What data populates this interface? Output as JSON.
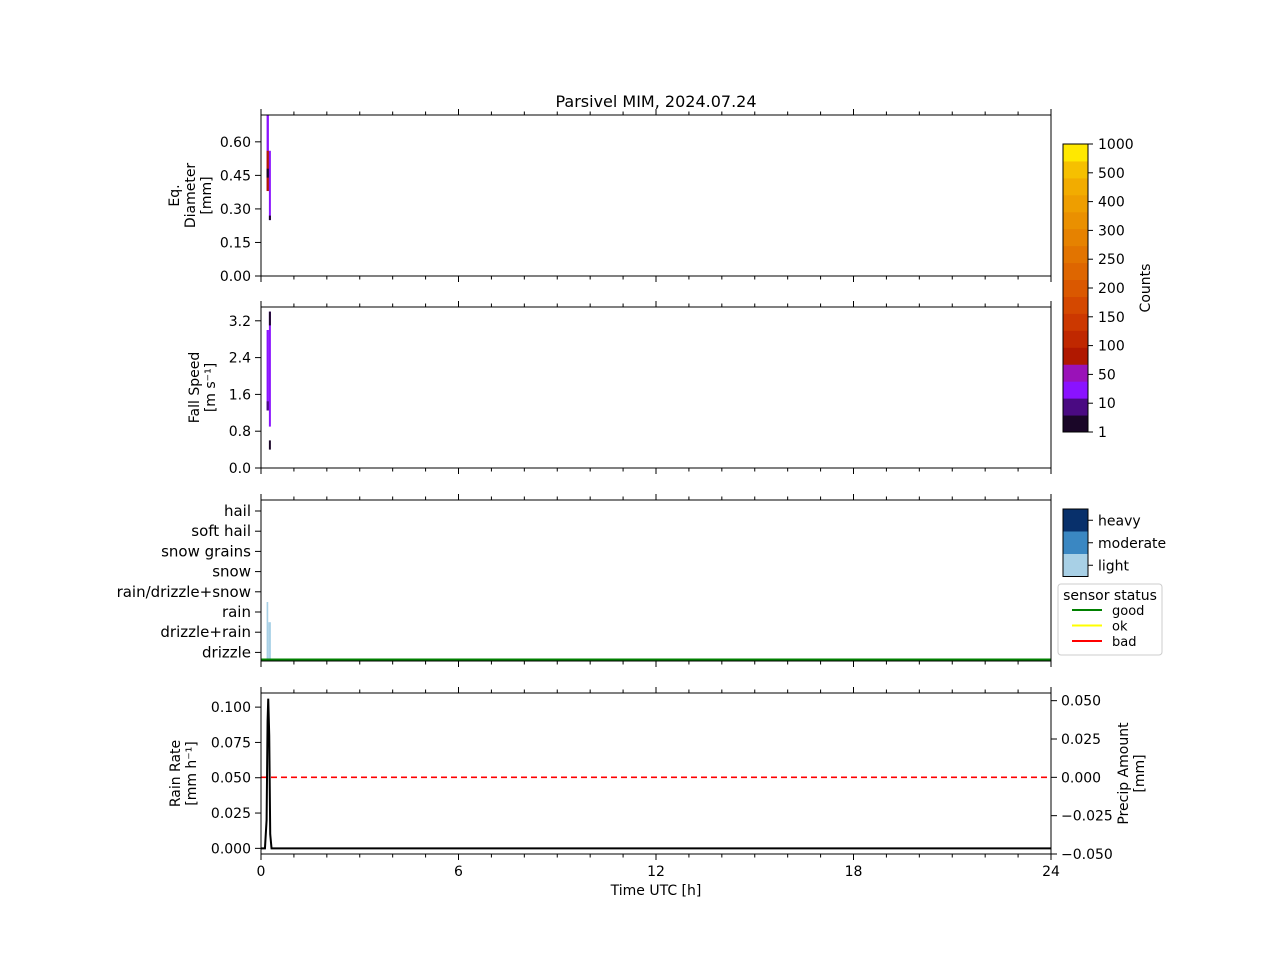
{
  "title": "Parsivel MIM, 2024.07.24",
  "x_axis": {
    "label": "Time UTC [h]",
    "range": [
      0,
      24
    ],
    "ticks": [
      0,
      6,
      12,
      18,
      24
    ],
    "tick_labels": [
      "0",
      "6",
      "12",
      "18",
      "24"
    ]
  },
  "colorbar": {
    "label": "Counts",
    "tick_labels": [
      "1",
      "10",
      "50",
      "100",
      "150",
      "200",
      "250",
      "300",
      "400",
      "500",
      "1000"
    ],
    "colors": [
      "#1a0628",
      "#4a0a82",
      "#8a12ff",
      "#9a12b8",
      "#b01800",
      "#c02800",
      "#cc3800",
      "#d44800",
      "#da5800",
      "#de6600",
      "#e27400",
      "#e68200",
      "#ea9000",
      "#ee9e00",
      "#f2ac00",
      "#f6c000",
      "#ffe800"
    ]
  },
  "intensity_legend": {
    "entries": [
      "heavy",
      "moderate",
      "light"
    ],
    "colors": [
      "#08306b",
      "#3a87c2",
      "#a8d0e6"
    ]
  },
  "sensor_legend": {
    "title": "sensor status",
    "entries": [
      {
        "label": "good",
        "color": "#008000"
      },
      {
        "label": "ok",
        "color": "#ffff00"
      },
      {
        "label": "bad",
        "color": "#ff0000"
      }
    ]
  },
  "chart_data": [
    {
      "type": "heatmap",
      "ylabel": "Eq. Diameter [mm]",
      "ylabel_lines": [
        "Eq.",
        "Diameter",
        "[mm]"
      ],
      "ylim": [
        0,
        0.72
      ],
      "yticks": [
        0,
        0.15,
        0.3,
        0.45,
        0.6
      ],
      "ytick_labels": [
        "0.00",
        "0.15",
        "0.30",
        "0.45",
        "0.60"
      ],
      "cells": [
        {
          "t0": 0.17,
          "t1": 0.24,
          "y0": 0.38,
          "y1": 0.72,
          "color": "#8a12ff"
        },
        {
          "t0": 0.17,
          "t1": 0.24,
          "y0": 0.38,
          "y1": 0.56,
          "color": "#b01800"
        },
        {
          "t0": 0.17,
          "t1": 0.24,
          "y0": 0.44,
          "y1": 0.48,
          "color": "#1a0628"
        },
        {
          "t0": 0.24,
          "t1": 0.3,
          "y0": 0.25,
          "y1": 0.56,
          "color": "#8a12ff"
        },
        {
          "t0": 0.24,
          "t1": 0.3,
          "y0": 0.25,
          "y1": 0.27,
          "color": "#1a0628"
        }
      ]
    },
    {
      "type": "heatmap",
      "ylabel": "Fall Speed [m s⁻¹]",
      "ylabel_lines": [
        "Fall Speed",
        "[m s⁻¹]"
      ],
      "ylim": [
        0,
        3.5
      ],
      "yticks": [
        0,
        0.8,
        1.6,
        2.4,
        3.2
      ],
      "ytick_labels": [
        "0.0",
        "0.8",
        "1.6",
        "2.4",
        "3.2"
      ],
      "cells": [
        {
          "t0": 0.17,
          "t1": 0.24,
          "y0": 1.25,
          "y1": 3.0,
          "color": "#8a12ff"
        },
        {
          "t0": 0.17,
          "t1": 0.24,
          "y0": 1.25,
          "y1": 1.45,
          "color": "#4a0a82"
        },
        {
          "t0": 0.24,
          "t1": 0.3,
          "y0": 0.9,
          "y1": 3.4,
          "color": "#8a12ff"
        },
        {
          "t0": 0.24,
          "t1": 0.3,
          "y0": 3.1,
          "y1": 3.4,
          "color": "#1a0628"
        },
        {
          "t0": 0.24,
          "t1": 0.3,
          "y0": 0.4,
          "y1": 0.6,
          "color": "#1a0628"
        }
      ]
    },
    {
      "type": "bar",
      "ylabel": "",
      "categories": [
        "hail",
        "soft hail",
        "snow grains",
        "snow",
        "rain/drizzle+snow",
        "rain",
        "drizzle+rain",
        "drizzle"
      ],
      "bars": [
        {
          "t0": 0.17,
          "t1": 0.22,
          "category": "rain",
          "intensity": "light"
        },
        {
          "t0": 0.22,
          "t1": 0.3,
          "category": "drizzle+rain",
          "intensity": "light"
        }
      ],
      "sensor_status": [
        {
          "t0": 0,
          "t1": 24,
          "status": "good"
        }
      ]
    },
    {
      "type": "line",
      "ylabel": "Rain Rate [mm h⁻¹]",
      "ylabel_lines": [
        "Rain Rate",
        "[mm h⁻¹]"
      ],
      "ylim": [
        -0.004,
        0.11
      ],
      "yticks": [
        0,
        0.025,
        0.05,
        0.075,
        0.1
      ],
      "ytick_labels": [
        "0.000",
        "0.025",
        "0.050",
        "0.075",
        "0.100"
      ],
      "series": [
        {
          "x": [
            0,
            0.12,
            0.17,
            0.2,
            0.22,
            0.25,
            0.28,
            0.32,
            24
          ],
          "values": [
            0,
            0,
            0.02,
            0.09,
            0.106,
            0.08,
            0.01,
            0,
            0
          ],
          "color": "#000000"
        }
      ],
      "y2label": "Precip Amount [mm]",
      "y2label_lines": [
        "Precip Amount",
        "[mm]"
      ],
      "y2lim": [
        -0.05,
        0.055
      ],
      "y2ticks": [
        -0.05,
        -0.025,
        0,
        0.025,
        0.05
      ],
      "y2tick_labels": [
        "−0.050",
        "−0.025",
        "0.000",
        "0.025",
        "0.050"
      ],
      "y2series": [
        {
          "x": [
            0,
            24
          ],
          "values": [
            0,
            0
          ],
          "color": "#ff0000",
          "style": "dashed"
        }
      ]
    }
  ]
}
